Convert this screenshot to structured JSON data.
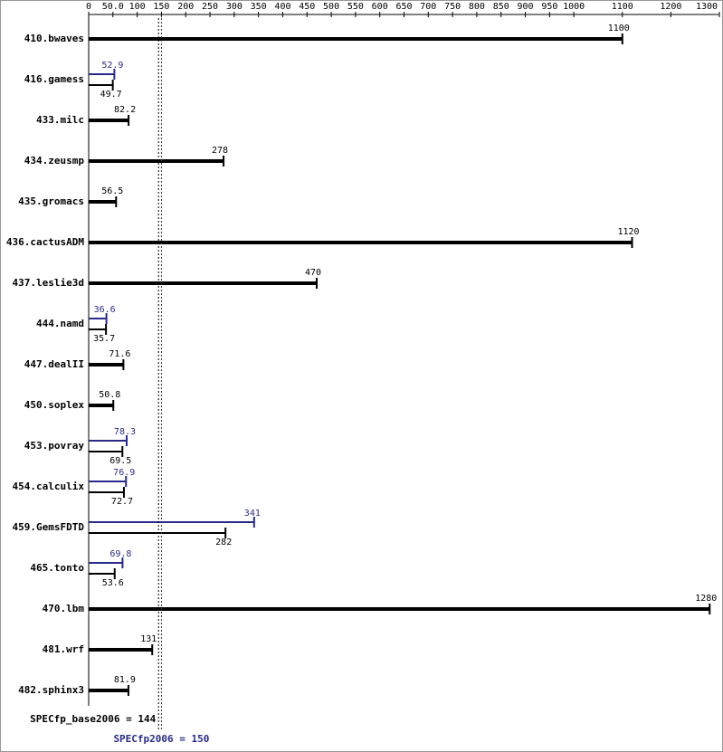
{
  "chart_data": {
    "type": "spec-bar",
    "categories": [
      "410.bwaves",
      "416.gamess",
      "433.milc",
      "434.zeusmp",
      "435.gromacs",
      "436.cactusADM",
      "437.leslie3d",
      "444.namd",
      "447.dealII",
      "450.soplex",
      "453.povray",
      "454.calculix",
      "459.GemsFDTD",
      "465.tonto",
      "470.lbm",
      "481.wrf",
      "482.sphinx3"
    ],
    "base": [
      1100,
      49.7,
      82.2,
      278,
      56.5,
      1120,
      470,
      35.7,
      71.6,
      50.8,
      69.5,
      72.7,
      282,
      53.6,
      1280,
      131,
      81.9
    ],
    "peak": [
      null,
      52.9,
      null,
      null,
      null,
      null,
      null,
      36.6,
      null,
      null,
      78.3,
      76.9,
      341,
      69.8,
      null,
      null,
      null
    ],
    "base_color": "#000000",
    "peak_color": "#2a2a8c",
    "xlim": [
      0,
      1300
    ],
    "xticks": [
      0,
      {
        "value": 50,
        "label": "50.0"
      },
      100,
      150,
      200,
      250,
      300,
      350,
      400,
      450,
      500,
      550,
      600,
      650,
      700,
      750,
      800,
      850,
      900,
      950,
      1000,
      1100,
      1200,
      1300
    ],
    "base_summary": {
      "label": "SPECfp_base2006 = 144",
      "value": 144
    },
    "peak_summary": {
      "label": "SPECfp2006 = 150",
      "value": 150
    }
  }
}
